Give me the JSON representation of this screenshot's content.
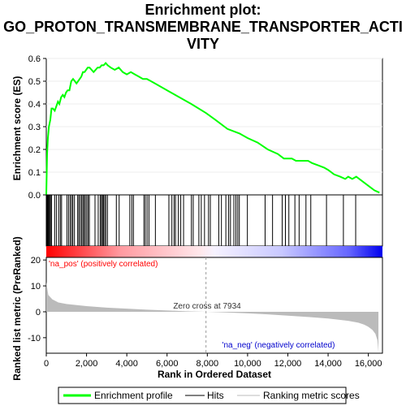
{
  "colors": {
    "es_line": "#00ff00",
    "hits": "#000000",
    "metric_fill": "#bbbbbb",
    "pos_label": "#ff0000",
    "neg_label": "#0000cc",
    "zero_line": "#999999",
    "bar_pos": "#ff0000",
    "bar_neg": "#0000ff"
  },
  "chart_data": {
    "type": "line",
    "title_lines": [
      "Enrichment plot:",
      "GO_PROTON_TRANSMEMBRANE_TRANSPORTER_ACTI",
      "VITY"
    ],
    "top_panel": {
      "ylabel": "Enrichment score (ES)",
      "ylim": [
        0,
        0.6
      ],
      "yticks": [
        "0.0",
        "0.1",
        "0.2",
        "0.3",
        "0.4",
        "0.5",
        "0.6"
      ],
      "series": [
        {
          "name": "Enrichment profile",
          "x": [
            0,
            40,
            80,
            130,
            200,
            260,
            330,
            420,
            500,
            580,
            650,
            740,
            820,
            900,
            980,
            1060,
            1150,
            1240,
            1330,
            1420,
            1500,
            1580,
            1660,
            1740,
            1820,
            1900,
            1980,
            2060,
            2150,
            2250,
            2350,
            2450,
            2550,
            2650,
            2750,
            2850,
            2950,
            3050,
            3200,
            3400,
            3600,
            3800,
            4000,
            4200,
            4400,
            4600,
            4800,
            5000,
            5400,
            6000,
            6600,
            7200,
            7934,
            8400,
            9000,
            9600,
            10000,
            10500,
            11000,
            11500,
            11800,
            12000,
            12200,
            12400,
            12600,
            12800,
            13000,
            13200,
            13500,
            13800,
            14000,
            14300,
            14600,
            14850,
            15000,
            15200,
            15400,
            15700,
            16000,
            16300,
            16550
          ],
          "y": [
            0.0,
            0.18,
            0.25,
            0.3,
            0.33,
            0.38,
            0.38,
            0.37,
            0.39,
            0.41,
            0.4,
            0.43,
            0.44,
            0.43,
            0.45,
            0.46,
            0.46,
            0.5,
            0.51,
            0.5,
            0.49,
            0.5,
            0.51,
            0.52,
            0.54,
            0.54,
            0.55,
            0.56,
            0.56,
            0.55,
            0.54,
            0.55,
            0.56,
            0.56,
            0.57,
            0.57,
            0.58,
            0.57,
            0.56,
            0.55,
            0.56,
            0.54,
            0.53,
            0.54,
            0.53,
            0.52,
            0.51,
            0.51,
            0.49,
            0.46,
            0.43,
            0.4,
            0.36,
            0.33,
            0.29,
            0.27,
            0.25,
            0.23,
            0.2,
            0.18,
            0.16,
            0.16,
            0.16,
            0.15,
            0.15,
            0.15,
            0.15,
            0.14,
            0.13,
            0.12,
            0.11,
            0.09,
            0.08,
            0.07,
            0.08,
            0.07,
            0.08,
            0.06,
            0.04,
            0.02,
            0.01
          ]
        }
      ]
    },
    "hits": [
      40,
      70,
      100,
      130,
      170,
      210,
      260,
      420,
      510,
      620,
      700,
      760,
      1030,
      1110,
      1190,
      1260,
      1320,
      1400,
      1560,
      1620,
      1690,
      1760,
      1820,
      1880,
      1940,
      2010,
      2080,
      2140,
      2420,
      2580,
      2680,
      2740,
      2790,
      2840,
      2900,
      2960,
      3040,
      3480,
      3620,
      4150,
      4250,
      4330,
      4850,
      4920,
      5010,
      5100,
      5420,
      6090,
      6240,
      6350,
      6420,
      6560,
      6680,
      6820,
      7210,
      7300,
      7580,
      7700,
      7860,
      8060,
      8150,
      8570,
      8700,
      8920,
      9060,
      9150,
      9320,
      9420,
      9510,
      9590,
      9990,
      10870,
      11240,
      11720,
      11880,
      12050,
      12350,
      12560,
      12900,
      13140,
      13920,
      14760,
      15370
    ],
    "metric": {
      "ylabel": "Ranked list metric (PreRanked)",
      "ylim": [
        -16,
        21
      ],
      "yticks": [
        "-10",
        "0",
        "10",
        "20"
      ],
      "x": [
        0,
        100,
        300,
        600,
        1000,
        2000,
        3000,
        4000,
        5000,
        6000,
        7000,
        7934,
        9000,
        10000,
        11000,
        12000,
        13000,
        14000,
        15000,
        15500,
        15800,
        16000,
        16200,
        16350,
        16450,
        16500
      ],
      "y": [
        11.5,
        6.5,
        4.8,
        3.6,
        3.0,
        2.2,
        1.6,
        1.2,
        0.8,
        0.5,
        0.2,
        0.0,
        -0.3,
        -0.6,
        -1.0,
        -1.5,
        -2.0,
        -2.6,
        -3.5,
        -4.2,
        -5.0,
        -5.8,
        -7.0,
        -8.5,
        -11.0,
        -15.5
      ]
    },
    "xlabel": "Rank in Ordered Dataset",
    "xlim": [
      0,
      16700
    ],
    "xticks": [
      "0",
      "2,000",
      "4,000",
      "6,000",
      "8,000",
      "10,000",
      "12,000",
      "14,000",
      "16,000"
    ],
    "zero_cross": 7934,
    "zero_cross_label": "Zero cross at 7934",
    "pos_label": "'na_pos' (positively correlated)",
    "neg_label": "'na_neg' (negatively correlated)",
    "legend": [
      "Enrichment profile",
      "Hits",
      "Ranking metric scores"
    ]
  }
}
